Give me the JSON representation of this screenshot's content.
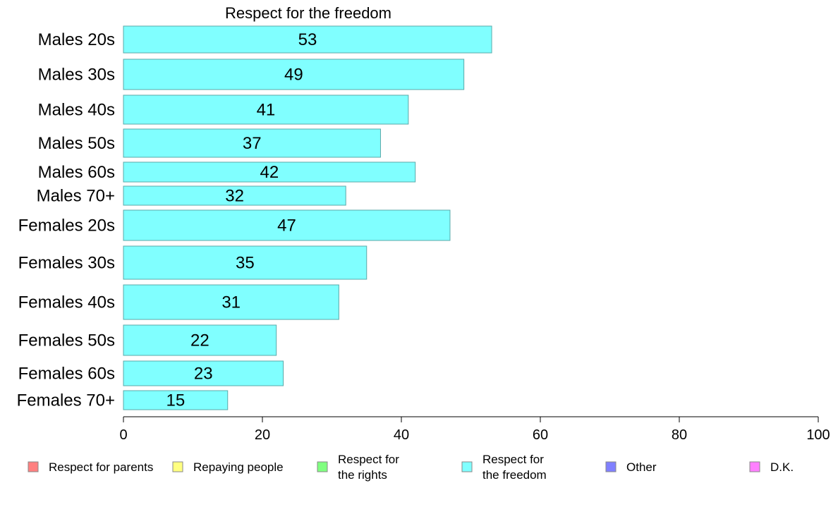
{
  "chart_data": {
    "type": "bar",
    "orientation": "horizontal",
    "title": "Respect for the freedom",
    "categories": [
      "Males 20s",
      "Males 30s",
      "Males 40s",
      "Males 50s",
      "Males 60s",
      "Males 70+",
      "Females 20s",
      "Females 30s",
      "Females 40s",
      "Females 50s",
      "Females 60s",
      "Females 70+"
    ],
    "values": [
      53,
      49,
      41,
      37,
      42,
      32,
      47,
      35,
      31,
      22,
      23,
      15
    ],
    "data_labels": [
      "53",
      "49",
      "41",
      "37",
      "42",
      "32",
      "47",
      "35",
      "31",
      "22",
      "23",
      "15"
    ],
    "xlim": [
      0,
      100
    ],
    "xticks": [
      "0",
      "20",
      "40",
      "60",
      "80",
      "100"
    ],
    "xlabel": "",
    "ylabel": "",
    "grid": false,
    "bar_color": "#80ffff",
    "legend_placement": "bottom",
    "legend": [
      {
        "lines": [
          "Respect for parents"
        ],
        "color": "#ff8080"
      },
      {
        "lines": [
          "Repaying people"
        ],
        "color": "#ffff80"
      },
      {
        "lines": [
          "Respect for",
          "the rights"
        ],
        "color": "#80ff80"
      },
      {
        "lines": [
          "Respect for",
          "the freedom"
        ],
        "color": "#80ffff"
      },
      {
        "lines": [
          "Other"
        ],
        "color": "#8080ff"
      },
      {
        "lines": [
          "D.K."
        ],
        "color": "#ff80ff"
      }
    ]
  }
}
